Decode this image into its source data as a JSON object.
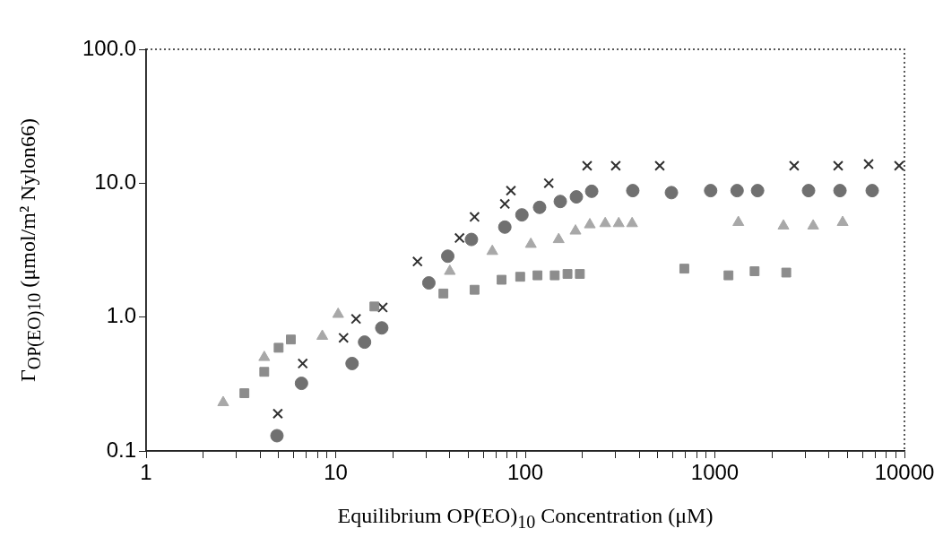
{
  "chart_data": {
    "type": "scatter",
    "xlabel": "Equilibrium OP(EO)$_{10}$ Concentration (μM)",
    "ylabel": "Γ$_{OP(EO)10}$ (μmol/m² Nylon66)",
    "log": "xy",
    "grid": false,
    "legend": false,
    "xlim": [
      1,
      10000
    ],
    "ylim": [
      0.1,
      100
    ],
    "xticks": [
      1,
      {
        "value": 2,
        "label": null
      },
      {
        "value": 3,
        "label": null
      },
      {
        "value": 4,
        "label": null
      },
      {
        "value": 5,
        "label": null
      },
      {
        "value": 6,
        "label": null
      },
      {
        "value": 7,
        "label": null
      },
      {
        "value": 8,
        "label": null
      },
      {
        "value": 9,
        "label": null
      },
      10,
      {
        "value": 20,
        "label": null
      },
      {
        "value": 30,
        "label": null
      },
      {
        "value": 40,
        "label": null
      },
      {
        "value": 50,
        "label": null
      },
      {
        "value": 60,
        "label": null
      },
      {
        "value": 70,
        "label": null
      },
      {
        "value": 80,
        "label": null
      },
      {
        "value": 90,
        "label": null
      },
      100,
      {
        "value": 200,
        "label": null
      },
      {
        "value": 300,
        "label": null
      },
      {
        "value": 400,
        "label": null
      },
      {
        "value": 500,
        "label": null
      },
      {
        "value": 600,
        "label": null
      },
      {
        "value": 700,
        "label": null
      },
      {
        "value": 800,
        "label": null
      },
      {
        "value": 900,
        "label": null
      },
      1000,
      {
        "value": 2000,
        "label": null
      },
      {
        "value": 3000,
        "label": null
      },
      {
        "value": 4000,
        "label": null
      },
      {
        "value": 5000,
        "label": null
      },
      {
        "value": 6000,
        "label": null
      },
      {
        "value": 7000,
        "label": null
      },
      {
        "value": 8000,
        "label": null
      },
      {
        "value": 9000,
        "label": null
      },
      10000
    ],
    "yticks": [
      {
        "value": 0.1,
        "label": "0.1"
      },
      {
        "value": 1,
        "label": "1.0"
      },
      {
        "value": 10,
        "label": "10.0"
      },
      {
        "value": 100,
        "label": "100.0"
      }
    ],
    "series": [
      {
        "marker": "triangle",
        "color": "#a8a8a8",
        "x": [
          2.55,
          4.2,
          8.5,
          10.3,
          40,
          67,
          107,
          150,
          184,
          219,
          264,
          311,
          366,
          1330,
          2300,
          3300,
          4720
        ],
        "values": [
          0.23,
          0.5,
          0.72,
          1.05,
          2.2,
          3.1,
          3.5,
          3.8,
          4.4,
          4.9,
          5,
          5,
          5,
          5.1,
          4.8,
          4.8,
          5.1
        ]
      },
      {
        "marker": "square",
        "color": "#8c8c8c",
        "x": [
          3.3,
          4.2,
          5,
          5.8,
          16,
          37,
          54,
          75,
          94,
          116,
          143,
          167,
          194,
          690,
          1180,
          1620,
          2380
        ],
        "values": [
          0.27,
          0.39,
          0.59,
          0.68,
          1.2,
          1.5,
          1.6,
          1.9,
          2,
          2.05,
          2.05,
          2.1,
          2.1,
          2.3,
          2.05,
          2.2,
          2.15
        ]
      },
      {
        "marker": "circle",
        "color": "#707070",
        "x": [
          4.9,
          6.6,
          12.2,
          14.2,
          17.5,
          31,
          39,
          52,
          78,
          96,
          119,
          153,
          186,
          224,
          369,
          590,
          950,
          1310,
          1680,
          3120,
          4570,
          6760
        ],
        "values": [
          0.13,
          0.32,
          0.45,
          0.65,
          0.83,
          1.8,
          2.85,
          3.8,
          4.7,
          5.8,
          6.6,
          7.3,
          7.9,
          8.7,
          8.8,
          8.5,
          8.8,
          8.8,
          8.8,
          8.8,
          8.8,
          8.8
        ]
      },
      {
        "marker": "cross",
        "color": "#303030",
        "x": [
          4.95,
          6.7,
          11,
          12.8,
          17.7,
          27,
          45,
          54,
          78,
          84,
          133,
          212,
          300,
          512,
          2620,
          4470,
          6470,
          9370
        ],
        "values": [
          0.19,
          0.45,
          0.7,
          0.97,
          1.18,
          2.6,
          3.9,
          5.6,
          7,
          8.8,
          10,
          13.5,
          13.5,
          13.5,
          13.5,
          13.5,
          13.9,
          13.5
        ]
      }
    ]
  }
}
